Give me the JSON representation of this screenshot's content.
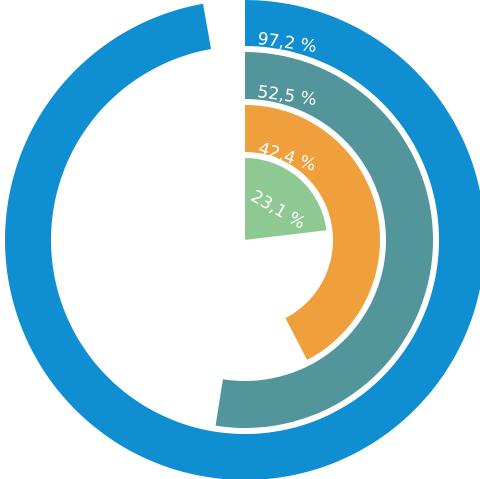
{
  "chart_data": {
    "type": "radial-bar",
    "categories": [
      "97,2 %",
      "52,5 %",
      "42,4 %",
      "23,1 %"
    ],
    "values": [
      97.2,
      52.5,
      42.4,
      23.1
    ],
    "unit": "%",
    "max": 100,
    "series": [
      {
        "label": "97,2 %",
        "value": 97.2,
        "color": "#0f8fd1"
      },
      {
        "label": "52,5 %",
        "value": 52.5,
        "color": "#52959b"
      },
      {
        "label": "42,4 %",
        "value": 42.4,
        "color": "#ef9f3b"
      },
      {
        "label": "23,1 %",
        "value": 23.1,
        "color": "#8ec993"
      }
    ]
  }
}
